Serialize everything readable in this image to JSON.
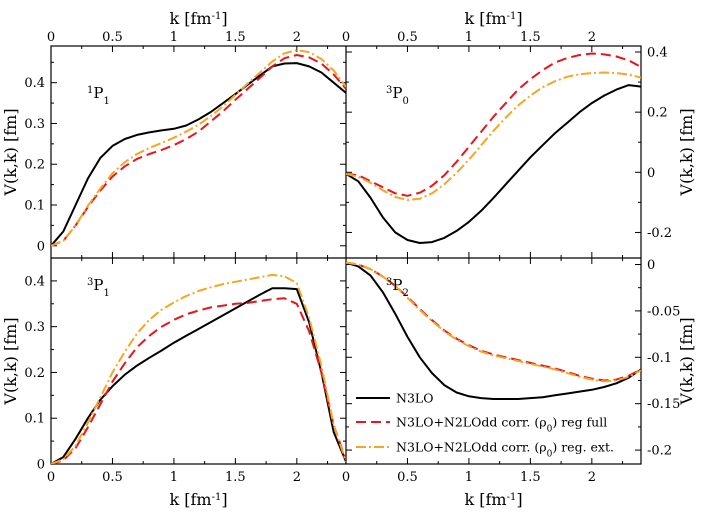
{
  "chart_data": {
    "type": "line",
    "title": "",
    "x_axis_label": {
      "pre": "k [fm",
      "sup": "-1",
      "post": "]"
    },
    "y_axis_label": "V(k,k) [fm]",
    "xlim": [
      0,
      2.4
    ],
    "x_ticks_left": [
      "0",
      "0.5",
      "1",
      "1.5",
      "2"
    ],
    "x_ticks_right": [
      "0",
      "0.5",
      "1",
      "1.5",
      "2"
    ],
    "legend": {
      "position": "bottom-right panel",
      "items": [
        {
          "key": "n3lo",
          "pre": "N3LO",
          "sub": "",
          "post": ""
        },
        {
          "key": "full",
          "pre": "N3LO+N2LOdd corr. (ρ",
          "sub": "0",
          "post": ") reg full"
        },
        {
          "key": "ext",
          "pre": "N3LO+N2LOdd corr. (ρ",
          "sub": "0",
          "post": ") reg. ext."
        }
      ]
    },
    "series_styles": [
      {
        "key": "n3lo",
        "color": "#000000",
        "dash": ""
      },
      {
        "key": "full",
        "color": "#e8141e",
        "dash": "10,5"
      },
      {
        "key": "ext",
        "color": "#f5a623",
        "dash": "10,3,2,3"
      }
    ],
    "panels": [
      {
        "name": "panel-1P1",
        "label": {
          "sup": "1",
          "main": "P",
          "sub": "1"
        },
        "ylim": [
          -0.03,
          0.49
        ],
        "y_ticks": [
          0,
          0.1,
          0.2,
          0.3,
          0.4
        ],
        "y_tick_labels": [
          "0",
          "0.1",
          "0.2",
          "0.3",
          "0.4"
        ],
        "series": [
          {
            "key": "n3lo",
            "x": [
              0,
              0.1,
              0.2,
              0.3,
              0.4,
              0.5,
              0.6,
              0.7,
              0.8,
              0.9,
              1.0,
              1.1,
              1.2,
              1.3,
              1.4,
              1.5,
              1.6,
              1.7,
              1.8,
              1.9,
              2.0,
              2.1,
              2.2,
              2.3,
              2.4
            ],
            "y": [
              0,
              0.035,
              0.1,
              0.165,
              0.215,
              0.245,
              0.262,
              0.272,
              0.278,
              0.283,
              0.287,
              0.295,
              0.31,
              0.328,
              0.35,
              0.372,
              0.395,
              0.418,
              0.44,
              0.447,
              0.448,
              0.44,
              0.425,
              0.4,
              0.375
            ]
          },
          {
            "key": "full",
            "x": [
              0,
              0.1,
              0.2,
              0.3,
              0.4,
              0.5,
              0.6,
              0.7,
              0.8,
              0.9,
              1.0,
              1.1,
              1.2,
              1.3,
              1.4,
              1.5,
              1.6,
              1.7,
              1.8,
              1.9,
              2.0,
              2.1,
              2.2,
              2.3,
              2.4
            ],
            "y": [
              0,
              0.012,
              0.05,
              0.095,
              0.135,
              0.17,
              0.195,
              0.213,
              0.225,
              0.235,
              0.247,
              0.262,
              0.28,
              0.305,
              0.33,
              0.358,
              0.385,
              0.412,
              0.44,
              0.46,
              0.468,
              0.462,
              0.447,
              0.42,
              0.385
            ]
          },
          {
            "key": "ext",
            "x": [
              0,
              0.1,
              0.2,
              0.3,
              0.4,
              0.5,
              0.6,
              0.7,
              0.8,
              0.9,
              1.0,
              1.1,
              1.2,
              1.3,
              1.4,
              1.5,
              1.6,
              1.7,
              1.8,
              1.9,
              2.0,
              2.1,
              2.2,
              2.3,
              2.4
            ],
            "y": [
              0,
              0.012,
              0.05,
              0.098,
              0.14,
              0.178,
              0.205,
              0.225,
              0.24,
              0.252,
              0.265,
              0.28,
              0.297,
              0.318,
              0.342,
              0.37,
              0.398,
              0.425,
              0.452,
              0.472,
              0.48,
              0.475,
              0.458,
              0.43,
              0.39
            ]
          }
        ]
      },
      {
        "name": "panel-3P0",
        "label": {
          "sup": "3",
          "main": "P",
          "sub": "0"
        },
        "ylim": [
          -0.285,
          0.42
        ],
        "y_ticks": [
          -0.2,
          0,
          0.2,
          0.4
        ],
        "y_tick_labels": [
          "-0.2",
          "0",
          "0.2",
          "0.4"
        ],
        "series": [
          {
            "key": "n3lo",
            "x": [
              0,
              0.1,
              0.2,
              0.3,
              0.4,
              0.5,
              0.6,
              0.7,
              0.8,
              0.9,
              1.0,
              1.1,
              1.2,
              1.3,
              1.4,
              1.5,
              1.6,
              1.7,
              1.8,
              1.9,
              2.0,
              2.1,
              2.2,
              2.3,
              2.4
            ],
            "y": [
              -0.005,
              -0.03,
              -0.085,
              -0.15,
              -0.2,
              -0.225,
              -0.235,
              -0.232,
              -0.218,
              -0.195,
              -0.165,
              -0.128,
              -0.085,
              -0.04,
              0.005,
              0.05,
              0.09,
              0.13,
              0.165,
              0.2,
              0.23,
              0.255,
              0.275,
              0.29,
              0.285
            ]
          },
          {
            "key": "full",
            "x": [
              0,
              0.1,
              0.2,
              0.3,
              0.4,
              0.5,
              0.6,
              0.7,
              0.8,
              0.9,
              1.0,
              1.1,
              1.2,
              1.3,
              1.4,
              1.5,
              1.6,
              1.7,
              1.8,
              1.9,
              2.0,
              2.1,
              2.2,
              2.3,
              2.4
            ],
            "y": [
              -0.005,
              -0.01,
              -0.03,
              -0.05,
              -0.07,
              -0.078,
              -0.068,
              -0.045,
              -0.01,
              0.035,
              0.085,
              0.135,
              0.185,
              0.23,
              0.275,
              0.31,
              0.34,
              0.365,
              0.38,
              0.39,
              0.395,
              0.392,
              0.385,
              0.372,
              0.35
            ]
          },
          {
            "key": "ext",
            "x": [
              0,
              0.1,
              0.2,
              0.3,
              0.4,
              0.5,
              0.6,
              0.7,
              0.8,
              0.9,
              1.0,
              1.1,
              1.2,
              1.3,
              1.4,
              1.5,
              1.6,
              1.7,
              1.8,
              1.9,
              2.0,
              2.1,
              2.2,
              2.3,
              2.4
            ],
            "y": [
              -0.005,
              -0.015,
              -0.035,
              -0.06,
              -0.082,
              -0.092,
              -0.088,
              -0.07,
              -0.04,
              -0.002,
              0.042,
              0.09,
              0.138,
              0.182,
              0.222,
              0.255,
              0.283,
              0.303,
              0.318,
              0.326,
              0.33,
              0.332,
              0.33,
              0.325,
              0.315
            ]
          }
        ]
      },
      {
        "name": "panel-3P1",
        "label": {
          "sup": "3",
          "main": "P",
          "sub": "1"
        },
        "ylim": [
          0,
          0.45
        ],
        "y_ticks": [
          0,
          0.1,
          0.2,
          0.3,
          0.4
        ],
        "y_tick_labels": [
          "0",
          "0.1",
          "0.2",
          "0.3",
          "0.4"
        ],
        "series": [
          {
            "key": "n3lo",
            "x": [
              0,
              0.1,
              0.2,
              0.3,
              0.4,
              0.5,
              0.6,
              0.7,
              0.8,
              0.9,
              1.0,
              1.1,
              1.2,
              1.3,
              1.4,
              1.5,
              1.6,
              1.7,
              1.8,
              1.9,
              2.0,
              2.1,
              2.2,
              2.3,
              2.4
            ],
            "y": [
              0,
              0.015,
              0.055,
              0.1,
              0.14,
              0.17,
              0.195,
              0.215,
              0.232,
              0.248,
              0.265,
              0.28,
              0.295,
              0.31,
              0.325,
              0.34,
              0.355,
              0.37,
              0.384,
              0.384,
              0.382,
              0.31,
              0.2,
              0.07,
              0.005
            ]
          },
          {
            "key": "full",
            "x": [
              0,
              0.1,
              0.2,
              0.3,
              0.4,
              0.5,
              0.6,
              0.7,
              0.8,
              0.9,
              1.0,
              1.1,
              1.2,
              1.3,
              1.4,
              1.5,
              1.6,
              1.7,
              1.8,
              1.9,
              2.0,
              2.1,
              2.2,
              2.3,
              2.4
            ],
            "y": [
              0,
              0.008,
              0.035,
              0.08,
              0.13,
              0.18,
              0.22,
              0.255,
              0.28,
              0.3,
              0.315,
              0.327,
              0.335,
              0.342,
              0.346,
              0.35,
              0.352,
              0.356,
              0.36,
              0.362,
              0.35,
              0.29,
              0.2,
              0.085,
              0.008
            ]
          },
          {
            "key": "ext",
            "x": [
              0,
              0.1,
              0.2,
              0.3,
              0.4,
              0.5,
              0.6,
              0.7,
              0.8,
              0.9,
              1.0,
              1.1,
              1.2,
              1.3,
              1.4,
              1.5,
              1.6,
              1.7,
              1.8,
              1.9,
              2.0,
              2.1,
              2.2,
              2.3,
              2.4
            ],
            "y": [
              0,
              0.01,
              0.04,
              0.09,
              0.145,
              0.2,
              0.245,
              0.285,
              0.315,
              0.337,
              0.353,
              0.367,
              0.378,
              0.386,
              0.393,
              0.398,
              0.403,
              0.408,
              0.413,
              0.41,
              0.395,
              0.32,
              0.215,
              0.085,
              0.005
            ]
          }
        ]
      },
      {
        "name": "panel-3P2",
        "label": {
          "sup": "3",
          "main": "P",
          "sub": "2"
        },
        "ylim": [
          -0.215,
          0.007
        ],
        "y_ticks": [
          0,
          -0.05,
          -0.1,
          -0.15,
          -0.2
        ],
        "y_tick_labels": [
          "0",
          "-0.05",
          "-0.1",
          "-0.15",
          "-0.2"
        ],
        "series": [
          {
            "key": "n3lo",
            "x": [
              0,
              0.1,
              0.2,
              0.3,
              0.4,
              0.5,
              0.6,
              0.7,
              0.8,
              0.9,
              1.0,
              1.1,
              1.2,
              1.3,
              1.4,
              1.5,
              1.6,
              1.7,
              1.8,
              1.9,
              2.0,
              2.1,
              2.2,
              2.3,
              2.4
            ],
            "y": [
              0.002,
              -0.002,
              -0.012,
              -0.03,
              -0.053,
              -0.078,
              -0.1,
              -0.117,
              -0.13,
              -0.138,
              -0.142,
              -0.144,
              -0.145,
              -0.145,
              -0.145,
              -0.144,
              -0.143,
              -0.141,
              -0.139,
              -0.137,
              -0.135,
              -0.132,
              -0.128,
              -0.122,
              -0.113
            ]
          },
          {
            "key": "full",
            "x": [
              0,
              0.1,
              0.2,
              0.3,
              0.4,
              0.5,
              0.6,
              0.7,
              0.8,
              0.9,
              1.0,
              1.1,
              1.2,
              1.3,
              1.4,
              1.5,
              1.6,
              1.7,
              1.8,
              1.9,
              2.0,
              2.1,
              2.2,
              2.3,
              2.4
            ],
            "y": [
              0.002,
              0,
              -0.005,
              -0.013,
              -0.023,
              -0.035,
              -0.048,
              -0.06,
              -0.071,
              -0.08,
              -0.087,
              -0.093,
              -0.097,
              -0.1,
              -0.103,
              -0.106,
              -0.109,
              -0.112,
              -0.116,
              -0.12,
              -0.123,
              -0.125,
              -0.124,
              -0.12,
              -0.113
            ]
          },
          {
            "key": "ext",
            "x": [
              0,
              0.1,
              0.2,
              0.3,
              0.4,
              0.5,
              0.6,
              0.7,
              0.8,
              0.9,
              1.0,
              1.1,
              1.2,
              1.3,
              1.4,
              1.5,
              1.6,
              1.7,
              1.8,
              1.9,
              2.0,
              2.1,
              2.2,
              2.3,
              2.4
            ],
            "y": [
              0.002,
              0,
              -0.005,
              -0.013,
              -0.023,
              -0.036,
              -0.049,
              -0.061,
              -0.072,
              -0.081,
              -0.088,
              -0.094,
              -0.098,
              -0.101,
              -0.104,
              -0.107,
              -0.11,
              -0.113,
              -0.117,
              -0.121,
              -0.124,
              -0.126,
              -0.125,
              -0.121,
              -0.114
            ]
          }
        ]
      }
    ]
  }
}
